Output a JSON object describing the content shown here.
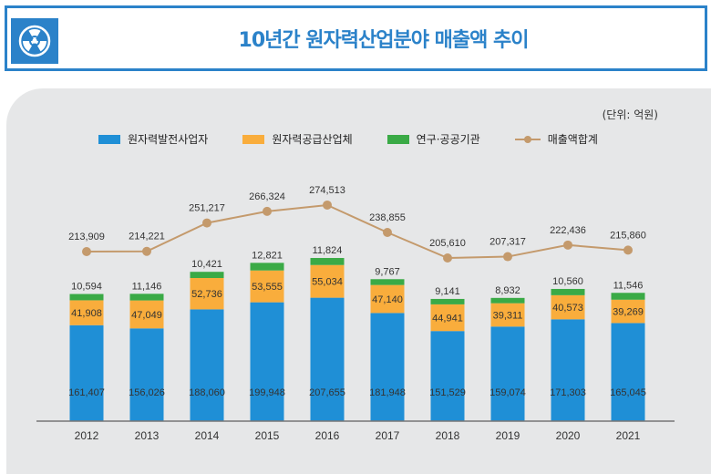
{
  "header": {
    "title": "10년간 원자력산업분야 매출액 추이",
    "icon": "radiation-icon"
  },
  "chart_data": {
    "type": "bar",
    "stacked": true,
    "title": "10년간 원자력산업분야 매출액 추이",
    "unit": "(단위: 억원)",
    "categories": [
      "2012",
      "2013",
      "2014",
      "2015",
      "2016",
      "2017",
      "2018",
      "2019",
      "2020",
      "2021"
    ],
    "series": [
      {
        "name": "원자력발전사업자",
        "color": "#1f8fd6",
        "values": [
          161407,
          156026,
          188060,
          199948,
          207655,
          181948,
          151529,
          159074,
          171303,
          165045
        ]
      },
      {
        "name": "원자력공급산업체",
        "color": "#f9ad3c",
        "values": [
          41908,
          47049,
          52736,
          53555,
          55034,
          47140,
          44941,
          39311,
          40573,
          39269
        ]
      },
      {
        "name": "연구·공공기관",
        "color": "#3aaa46",
        "values": [
          10594,
          11146,
          10421,
          12821,
          11824,
          9767,
          9141,
          8932,
          10560,
          11546
        ]
      }
    ],
    "line": {
      "name": "매출액합계",
      "color": "#c49a6c",
      "values": [
        213909,
        214221,
        251217,
        266324,
        274513,
        238855,
        205610,
        207317,
        222436,
        215860
      ]
    },
    "value_labels": {
      "series": [
        [
          "161,407",
          "156,026",
          "188,060",
          "199,948",
          "207,655",
          "181,948",
          "151,529",
          "159,074",
          "171,303",
          "165,045"
        ],
        [
          "41,908",
          "47,049",
          "52,736",
          "53,555",
          "55,034",
          "47,140",
          "44,941",
          "39,311",
          "40,573",
          "39,269"
        ],
        [
          "10,594",
          "11,146",
          "10,421",
          "12,821",
          "11,824",
          "9,767",
          "9,141",
          "8,932",
          "10,560",
          "11,546"
        ]
      ],
      "line": [
        "213,909",
        "214,221",
        "251,217",
        "266,324",
        "274,513",
        "238,855",
        "205,610",
        "207,317",
        "222,436",
        "215,860"
      ]
    },
    "legend_position": "top",
    "grid": false
  }
}
